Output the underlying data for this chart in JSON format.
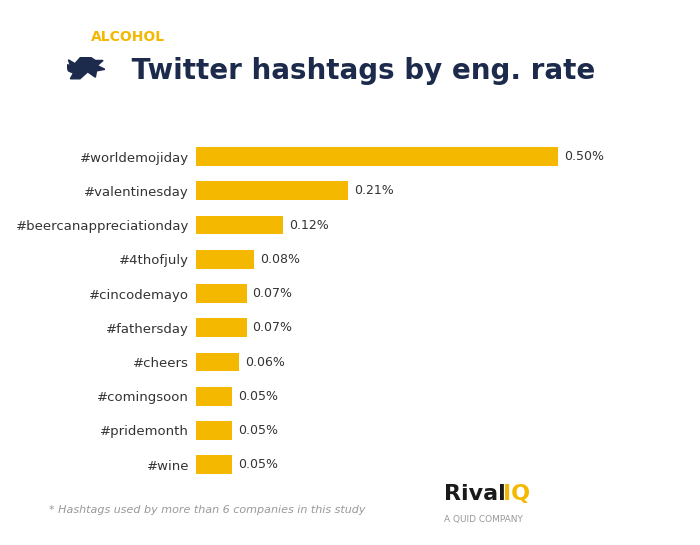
{
  "categories": [
    "#wine",
    "#pridemonth",
    "#comingsoon",
    "#cheers",
    "#fathersday",
    "#cincodemayo",
    "#4thofjuly",
    "#beercanappreciationday",
    "#valentinesday",
    "#worldemojiday"
  ],
  "values": [
    0.0005,
    0.0005,
    0.0005,
    0.0006,
    0.0007,
    0.0007,
    0.0008,
    0.0012,
    0.0021,
    0.005
  ],
  "labels": [
    "0.05%",
    "0.05%",
    "0.05%",
    "0.06%",
    "0.07%",
    "0.07%",
    "0.08%",
    "0.12%",
    "0.21%",
    "0.50%"
  ],
  "bar_color": "#F5B800",
  "background_color": "#FFFFFF",
  "title": " Twitter hashtags by eng. rate",
  "subtitle": "ALCOHOL",
  "subtitle_color": "#F5B800",
  "title_color": "#1C2B4B",
  "footnote": "* Hashtags used by more than 6 companies in this study",
  "bar_height": 0.55,
  "top_bar_color_left": "#4472C4",
  "top_bar_color_right": "#EDC83A",
  "rival_text_color": "#1a1a1a",
  "iq_text_color": "#F5B800",
  "subcompany_color": "#999999",
  "xlim": [
    0,
    0.0058
  ]
}
